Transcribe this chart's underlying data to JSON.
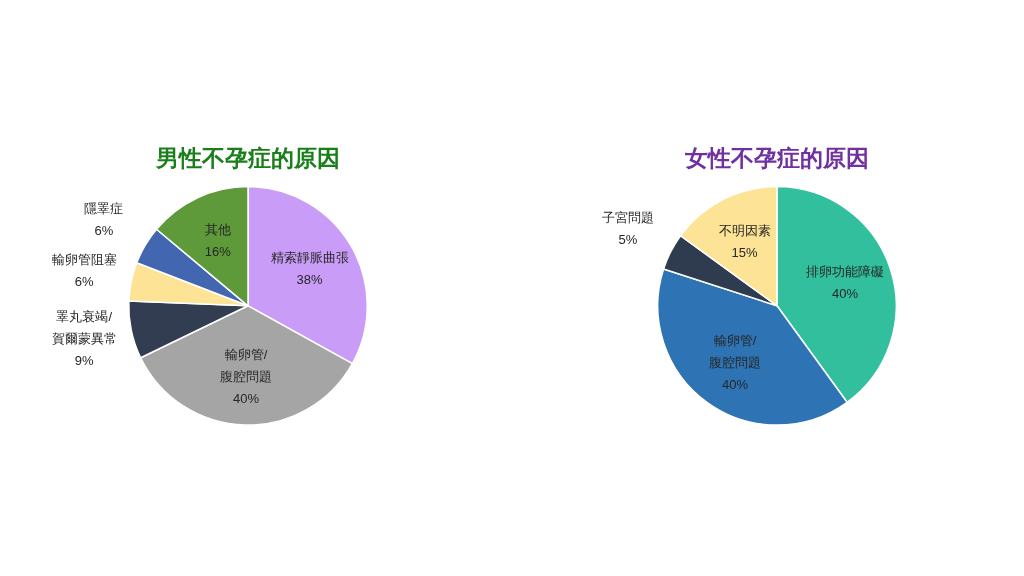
{
  "chart_data": [
    {
      "type": "pie",
      "title": "男性不孕症的原因",
      "categories": [
        "精索靜脈曲張",
        "輸卵管/腹腔問題",
        "睪丸衰竭/賀爾蒙異常",
        "輸卵管阻塞",
        "隱睪症",
        "其他"
      ],
      "values": [
        38,
        40,
        9,
        6,
        6,
        16
      ],
      "value_labels": [
        "38%",
        "40%",
        "9%",
        "6%",
        "6%",
        "16%"
      ],
      "colors": [
        "#c99cf7",
        "#a5a5a5",
        "#323d51",
        "#fde396",
        "#4266af",
        "#5f9a3a"
      ],
      "legend": false
    },
    {
      "type": "pie",
      "title": "女性不孕症的原因",
      "categories": [
        "排卵功能障礙",
        "輸卵管/腹腔問題",
        "子宮問題",
        "不明因素"
      ],
      "values": [
        40,
        40,
        5,
        15
      ],
      "value_labels": [
        "40%",
        "40%",
        "5%",
        "15%"
      ],
      "colors": [
        "#31bf9d",
        "#2e74b5",
        "#2f3b4f",
        "#fde396"
      ],
      "legend": false
    }
  ]
}
